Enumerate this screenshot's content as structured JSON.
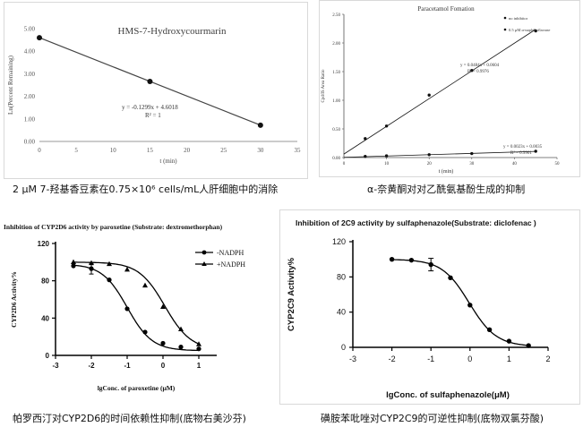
{
  "panels": [
    {
      "caption": "2 µM 7-羟基香豆素在0.75×10⁶ cells/mL人肝细胞中的消除"
    },
    {
      "caption": "α-奈黄酮对对乙酰氨基酚生成的抑制"
    },
    {
      "caption": "帕罗西汀对CYP2D6的时间依赖性抑制(底物右美沙芬)"
    },
    {
      "caption": "磺胺苯吡唑对CYP2C9的可逆性抑制(底物双氯芬酸)"
    }
  ],
  "chart_data": [
    {
      "type": "line",
      "title": "HMS-7-Hydroxycourmarin",
      "xlabel": "t (min)",
      "ylabel": "Ln(Percent Remaining)",
      "xlim": [
        0,
        35
      ],
      "ylim": [
        0,
        5
      ],
      "xticks": [
        "0",
        "5",
        "10",
        "15",
        "20",
        "25",
        "30",
        "35"
      ],
      "yticks": [
        "0.00",
        "1.00",
        "2.00",
        "3.00",
        "4.00",
        "5.00"
      ],
      "series": [
        {
          "x": [
            0,
            15,
            30
          ],
          "y": [
            4.6,
            2.66,
            0.72
          ]
        }
      ],
      "annotations": [
        "y = -0.1299x + 4.6018",
        "R² = 1"
      ],
      "grid": false
    },
    {
      "type": "scatter",
      "title": "Paracetamol Fomation",
      "xlabel": "t (min)",
      "ylabel": "Cpd/IS Area Ratio",
      "xlim": [
        0,
        50
      ],
      "ylim": [
        0,
        2.5
      ],
      "xticks": [
        "0",
        "10",
        "20",
        "30",
        "40",
        "50"
      ],
      "yticks": [
        "0.00",
        "0.50",
        "1.00",
        "1.50",
        "2.00",
        "2.50"
      ],
      "series": [
        {
          "name": "no inhibitor",
          "x": [
            5,
            10,
            20,
            30,
            45
          ],
          "y": [
            0.33,
            0.55,
            1.09,
            1.52,
            2.21
          ]
        },
        {
          "name": "0.5 µM α-naphthoflavone",
          "x": [
            5,
            10,
            20,
            30,
            45
          ],
          "y": [
            0.02,
            0.03,
            0.05,
            0.07,
            0.11
          ]
        }
      ],
      "annotations": [
        "y = 0.0484x + 0.0604",
        "R² = 0.9976",
        "y = 0.0023x + 0.0035",
        "R² = 0.9901"
      ],
      "legend": "top-right",
      "grid": false
    },
    {
      "type": "line",
      "title": "Inhibition of CYP2D6 activity by paroxetine (Substrate: dextromethorphan)",
      "xlabel": "lgConc. of paroxetine (μM)",
      "ylabel": "CYP2D6 Activity%",
      "xlim": [
        -3,
        1.5
      ],
      "ylim": [
        0,
        120
      ],
      "xticks": [
        "-3",
        "-2",
        "-1",
        "0",
        "1"
      ],
      "yticks": [
        "0",
        "40",
        "80",
        "120"
      ],
      "series": [
        {
          "name": "-NADPH",
          "marker": "circle",
          "x": [
            -2.5,
            -2,
            -1.5,
            -1,
            -0.5,
            0,
            0.5,
            1
          ],
          "y": [
            96,
            93,
            81,
            50,
            25,
            13,
            9,
            7
          ]
        },
        {
          "name": "+NADPH",
          "marker": "triangle",
          "x": [
            -2.5,
            -2,
            -1.5,
            -1,
            -0.5,
            0,
            0.5,
            1
          ],
          "y": [
            100,
            99,
            98,
            92,
            75,
            52,
            28,
            12
          ]
        }
      ],
      "legend": "top-right",
      "grid": false
    },
    {
      "type": "line",
      "title": "Inhibition of 2C9 activity by sulfaphenazole(Substrate: diclofenac )",
      "xlabel": "lgConc. of sulfaphenazole(μM)",
      "ylabel": "CYP2C9 Activity%",
      "xlim": [
        -3,
        2
      ],
      "ylim": [
        0,
        120
      ],
      "xticks": [
        "-3",
        "-2",
        "-1",
        "0",
        "1",
        "2"
      ],
      "yticks": [
        "0",
        "40",
        "80",
        "120"
      ],
      "series": [
        {
          "x": [
            -2,
            -1.5,
            -1,
            -0.5,
            0,
            0.5,
            1,
            1.5
          ],
          "y": [
            100,
            99,
            94,
            79,
            48,
            20,
            7,
            2
          ]
        }
      ],
      "grid": false
    }
  ]
}
